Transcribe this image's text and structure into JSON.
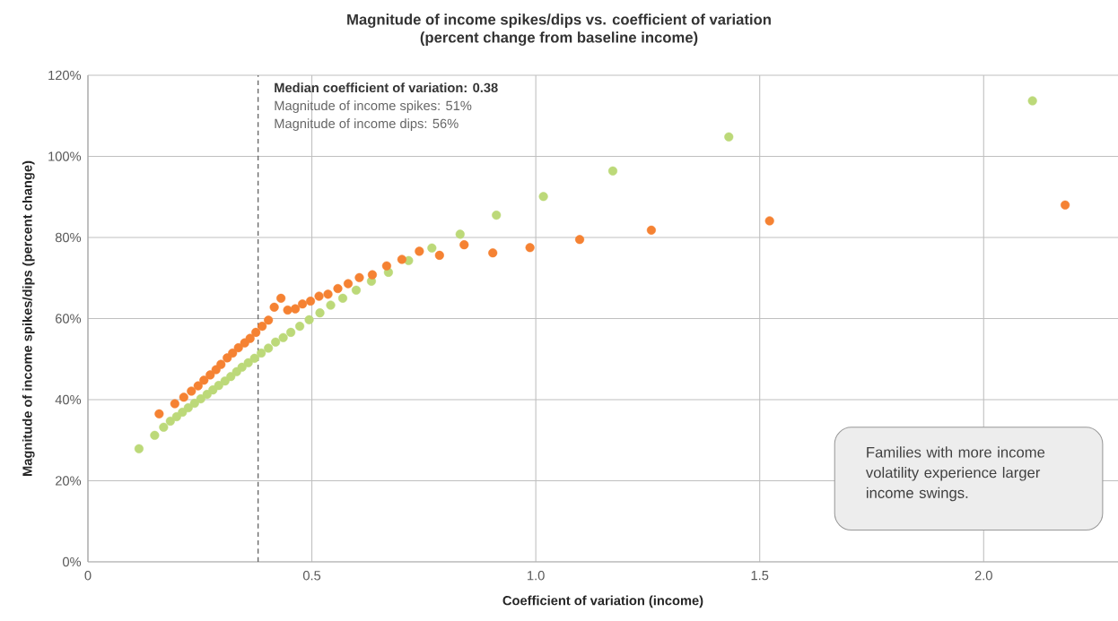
{
  "chart_data": {
    "type": "scatter",
    "title": "Magnitude of income spikes/dips vs. coefficient of variation",
    "subtitle": "(percent change from baseline income)",
    "xlabel": "Coefficient of variation (income)",
    "ylabel": "Magnitude of income spikes/dips (percent change)",
    "series": [
      {
        "color": "#bcd979",
        "x": [
          0.114,
          0.149,
          0.169,
          0.184,
          0.198,
          0.211,
          0.224,
          0.238,
          0.252,
          0.266,
          0.279,
          0.292,
          0.306,
          0.319,
          0.332,
          0.344,
          0.358,
          0.372,
          0.387,
          0.403,
          0.419,
          0.436,
          0.453,
          0.473,
          0.494,
          0.518,
          0.542,
          0.569,
          0.599,
          0.633,
          0.671,
          0.716,
          0.768,
          0.831,
          0.912,
          1.017,
          1.172,
          1.431,
          2.109
        ],
        "values": [
          27.9,
          31.2,
          33.2,
          34.7,
          35.8,
          36.9,
          38.0,
          39.1,
          40.2,
          41.3,
          42.4,
          43.5,
          44.6,
          45.7,
          46.9,
          48.0,
          49.1,
          50.2,
          51.5,
          52.7,
          54.2,
          55.3,
          56.6,
          58.1,
          59.7,
          61.4,
          63.3,
          65.0,
          67.0,
          69.2,
          71.4,
          74.3,
          77.4,
          80.8,
          85.5,
          90.1,
          96.4,
          104.8,
          113.7
        ]
      },
      {
        "color": "#f58233",
        "x": [
          0.159,
          0.194,
          0.214,
          0.231,
          0.246,
          0.259,
          0.273,
          0.286,
          0.297,
          0.311,
          0.323,
          0.336,
          0.35,
          0.362,
          0.375,
          0.389,
          0.403,
          0.416,
          0.431,
          0.446,
          0.463,
          0.479,
          0.497,
          0.516,
          0.536,
          0.558,
          0.581,
          0.606,
          0.635,
          0.667,
          0.701,
          0.74,
          0.785,
          0.84,
          0.904,
          0.987,
          1.098,
          1.258,
          1.522,
          2.182
        ],
        "values": [
          36.5,
          39.0,
          40.6,
          42.1,
          43.4,
          44.8,
          46.1,
          47.4,
          48.7,
          50.3,
          51.5,
          52.8,
          54.0,
          55.1,
          56.6,
          58.1,
          59.6,
          62.8,
          65.0,
          62.1,
          62.4,
          63.6,
          64.3,
          65.5,
          66.0,
          67.4,
          68.6,
          70.1,
          70.8,
          73.0,
          74.6,
          76.6,
          75.6,
          78.2,
          76.2,
          77.5,
          79.5,
          81.8,
          84.1,
          88.0
        ]
      }
    ],
    "xlim": [
      0,
      2.3
    ],
    "ylim": [
      0,
      120
    ],
    "xticks": [
      0,
      0.5,
      {
        "value": 1,
        "label": "1.0"
      },
      1.5,
      {
        "value": 2,
        "label": "2.0"
      }
    ],
    "yticks": [
      {
        "value": 0,
        "label": "0%"
      },
      {
        "value": 20,
        "label": "20%"
      },
      {
        "value": 40,
        "label": "40%"
      },
      {
        "value": 60,
        "label": "60%"
      },
      {
        "value": 80,
        "label": "80%"
      },
      {
        "value": 100,
        "label": "100%"
      },
      {
        "value": 120,
        "label": "120%"
      }
    ],
    "grid": true,
    "marker": "circle",
    "ref_lines": [
      {
        "axis": "x",
        "value": 0.38,
        "label": "Median coefficient of variation: 0.38",
        "color": "#595959",
        "line_style": "dashed"
      }
    ],
    "annotations": [
      "Magnitude of income spikes: 51%",
      "Magnitude of income dips: 56%",
      "Families with more income volatility experience larger income swings."
    ]
  }
}
